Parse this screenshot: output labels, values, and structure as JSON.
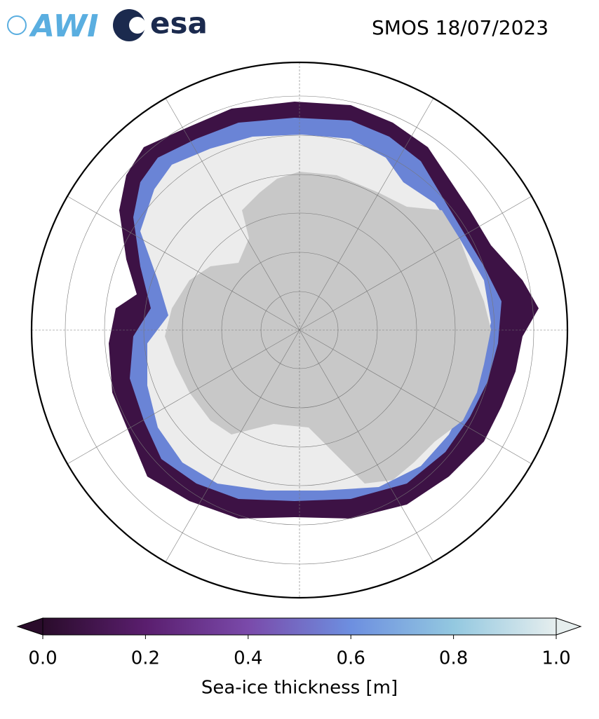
{
  "header": {
    "title": "SMOS 18/07/2023",
    "logos": [
      "AWI",
      "esa"
    ]
  },
  "colorbar": {
    "label": "Sea-ice thickness [m]",
    "lim": [
      0,
      1
    ],
    "ticks": [
      {
        "value": 0,
        "label": "0.0"
      },
      {
        "value": 0.2,
        "label": "0.2"
      },
      {
        "value": 0.4,
        "label": "0.4"
      },
      {
        "value": 0.6,
        "label": "0.6"
      },
      {
        "value": 0.8,
        "label": "0.8"
      },
      {
        "value": 1,
        "label": "1.0"
      }
    ],
    "colors": [
      "#2a0c2b",
      "#5a1e6e",
      "#7a4aaa",
      "#6d8fe0",
      "#93c8e0",
      "#e6eeee"
    ]
  }
}
